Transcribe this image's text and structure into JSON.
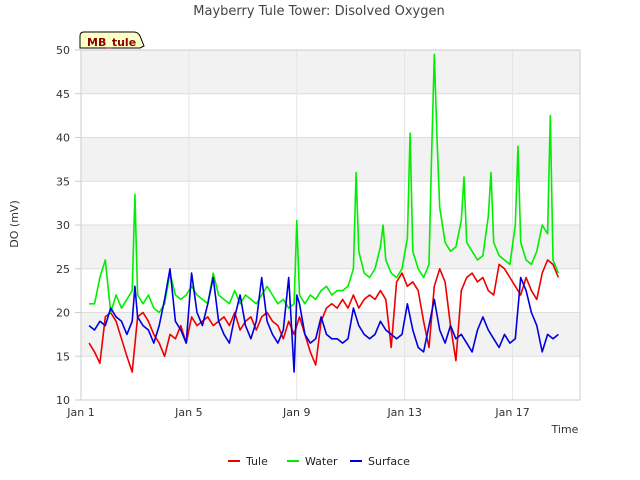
{
  "chart_data": {
    "type": "line",
    "title": "Mayberry Tule Tower: Disolved Oxygen",
    "xlabel": "Time",
    "ylabel": "DO (mV)",
    "ylim": [
      10,
      50
    ],
    "xlim": [
      1,
      19.5
    ],
    "yticks": [
      10,
      15,
      20,
      25,
      30,
      35,
      40,
      45,
      50
    ],
    "xticks": [
      {
        "value": 1,
        "label": "Jan 1"
      },
      {
        "value": 5,
        "label": "Jan 5"
      },
      {
        "value": 9,
        "label": "Jan 9"
      },
      {
        "value": 13,
        "label": "Jan 13"
      },
      {
        "value": 17,
        "label": "Jan 17"
      }
    ],
    "x_unit": "day of January",
    "grid": true,
    "banding": "alternating light-gray horizontal bands",
    "legend_placement": "bottom",
    "badge": "MB_tule",
    "series": [
      {
        "name": "Tule",
        "color": "#ee0000",
        "points": [
          [
            1.3,
            16.5
          ],
          [
            1.5,
            15.5
          ],
          [
            1.7,
            14.2
          ],
          [
            1.9,
            19.5
          ],
          [
            2.1,
            20.0
          ],
          [
            2.3,
            19.0
          ],
          [
            2.5,
            17.0
          ],
          [
            2.7,
            15.0
          ],
          [
            2.9,
            13.2
          ],
          [
            3.1,
            19.5
          ],
          [
            3.3,
            20.0
          ],
          [
            3.5,
            19.0
          ],
          [
            3.7,
            17.5
          ],
          [
            3.9,
            16.5
          ],
          [
            4.1,
            15.0
          ],
          [
            4.3,
            17.5
          ],
          [
            4.5,
            17.0
          ],
          [
            4.7,
            18.5
          ],
          [
            4.9,
            16.5
          ],
          [
            5.1,
            19.5
          ],
          [
            5.3,
            18.5
          ],
          [
            5.5,
            19.0
          ],
          [
            5.7,
            19.5
          ],
          [
            5.9,
            18.5
          ],
          [
            6.1,
            19.0
          ],
          [
            6.3,
            19.5
          ],
          [
            6.5,
            18.5
          ],
          [
            6.7,
            20.0
          ],
          [
            6.9,
            18.0
          ],
          [
            7.1,
            19.0
          ],
          [
            7.3,
            19.5
          ],
          [
            7.5,
            18.0
          ],
          [
            7.7,
            19.5
          ],
          [
            7.9,
            20.0
          ],
          [
            8.1,
            19.0
          ],
          [
            8.3,
            18.5
          ],
          [
            8.5,
            17.0
          ],
          [
            8.7,
            19.0
          ],
          [
            8.9,
            17.5
          ],
          [
            9.1,
            19.5
          ],
          [
            9.3,
            17.5
          ],
          [
            9.5,
            15.5
          ],
          [
            9.7,
            14.0
          ],
          [
            9.9,
            19.0
          ],
          [
            10.1,
            20.5
          ],
          [
            10.3,
            21.0
          ],
          [
            10.5,
            20.5
          ],
          [
            10.7,
            21.5
          ],
          [
            10.9,
            20.5
          ],
          [
            11.1,
            22.0
          ],
          [
            11.3,
            20.5
          ],
          [
            11.5,
            21.5
          ],
          [
            11.7,
            22.0
          ],
          [
            11.9,
            21.5
          ],
          [
            12.1,
            22.5
          ],
          [
            12.3,
            21.5
          ],
          [
            12.5,
            16.0
          ],
          [
            12.7,
            23.5
          ],
          [
            12.9,
            24.5
          ],
          [
            13.1,
            23.0
          ],
          [
            13.3,
            23.5
          ],
          [
            13.5,
            22.5
          ],
          [
            13.7,
            19.0
          ],
          [
            13.9,
            16.0
          ],
          [
            14.1,
            23.0
          ],
          [
            14.3,
            25.0
          ],
          [
            14.5,
            23.5
          ],
          [
            14.7,
            18.5
          ],
          [
            14.9,
            14.5
          ],
          [
            15.1,
            22.5
          ],
          [
            15.3,
            24.0
          ],
          [
            15.5,
            24.5
          ],
          [
            15.7,
            23.5
          ],
          [
            15.9,
            24.0
          ],
          [
            16.1,
            22.5
          ],
          [
            16.3,
            22.0
          ],
          [
            16.5,
            25.5
          ],
          [
            16.7,
            25.0
          ],
          [
            16.9,
            24.0
          ],
          [
            17.1,
            23.0
          ],
          [
            17.3,
            22.0
          ],
          [
            17.5,
            24.0
          ],
          [
            17.7,
            22.5
          ],
          [
            17.9,
            21.5
          ],
          [
            18.1,
            24.5
          ],
          [
            18.3,
            26.0
          ],
          [
            18.5,
            25.5
          ],
          [
            18.7,
            24.0
          ]
        ]
      },
      {
        "name": "Water",
        "color": "#00ee00",
        "points": [
          [
            1.3,
            21.0
          ],
          [
            1.5,
            21.0
          ],
          [
            1.7,
            24.0
          ],
          [
            1.9,
            26.0
          ],
          [
            2.1,
            20.0
          ],
          [
            2.3,
            22.0
          ],
          [
            2.5,
            20.5
          ],
          [
            2.7,
            21.5
          ],
          [
            2.9,
            22.5
          ],
          [
            3.0,
            33.5
          ],
          [
            3.1,
            22.0
          ],
          [
            3.3,
            21.0
          ],
          [
            3.5,
            22.0
          ],
          [
            3.7,
            20.5
          ],
          [
            3.9,
            20.0
          ],
          [
            4.1,
            21.0
          ],
          [
            4.3,
            24.5
          ],
          [
            4.5,
            22.0
          ],
          [
            4.7,
            21.5
          ],
          [
            4.9,
            22.0
          ],
          [
            5.1,
            23.0
          ],
          [
            5.3,
            22.0
          ],
          [
            5.5,
            21.5
          ],
          [
            5.7,
            21.0
          ],
          [
            5.9,
            24.5
          ],
          [
            6.1,
            22.0
          ],
          [
            6.3,
            21.5
          ],
          [
            6.5,
            21.0
          ],
          [
            6.7,
            22.5
          ],
          [
            6.9,
            21.0
          ],
          [
            7.1,
            22.0
          ],
          [
            7.3,
            21.5
          ],
          [
            7.5,
            21.0
          ],
          [
            7.7,
            22.0
          ],
          [
            7.9,
            23.0
          ],
          [
            8.1,
            22.0
          ],
          [
            8.3,
            21.0
          ],
          [
            8.5,
            21.5
          ],
          [
            8.7,
            20.5
          ],
          [
            8.9,
            21.0
          ],
          [
            9.0,
            30.5
          ],
          [
            9.1,
            22.0
          ],
          [
            9.3,
            21.0
          ],
          [
            9.5,
            22.0
          ],
          [
            9.7,
            21.5
          ],
          [
            9.9,
            22.5
          ],
          [
            10.1,
            23.0
          ],
          [
            10.3,
            22.0
          ],
          [
            10.5,
            22.5
          ],
          [
            10.7,
            22.5
          ],
          [
            10.9,
            23.0
          ],
          [
            11.1,
            25.0
          ],
          [
            11.2,
            36.0
          ],
          [
            11.3,
            27.0
          ],
          [
            11.5,
            24.5
          ],
          [
            11.7,
            24.0
          ],
          [
            11.9,
            25.0
          ],
          [
            12.1,
            27.5
          ],
          [
            12.2,
            30.0
          ],
          [
            12.3,
            26.0
          ],
          [
            12.5,
            24.5
          ],
          [
            12.7,
            24.0
          ],
          [
            12.9,
            25.0
          ],
          [
            13.1,
            28.5
          ],
          [
            13.2,
            40.5
          ],
          [
            13.3,
            27.0
          ],
          [
            13.5,
            25.0
          ],
          [
            13.7,
            24.0
          ],
          [
            13.9,
            25.5
          ],
          [
            14.0,
            38.0
          ],
          [
            14.1,
            49.5
          ],
          [
            14.2,
            40.0
          ],
          [
            14.3,
            32.0
          ],
          [
            14.5,
            28.0
          ],
          [
            14.7,
            27.0
          ],
          [
            14.9,
            27.5
          ],
          [
            15.1,
            30.5
          ],
          [
            15.2,
            35.5
          ],
          [
            15.3,
            28.0
          ],
          [
            15.5,
            27.0
          ],
          [
            15.7,
            26.0
          ],
          [
            15.9,
            26.5
          ],
          [
            16.1,
            31.0
          ],
          [
            16.2,
            36.0
          ],
          [
            16.3,
            28.0
          ],
          [
            16.5,
            26.5
          ],
          [
            16.7,
            26.0
          ],
          [
            16.9,
            25.5
          ],
          [
            17.1,
            30.0
          ],
          [
            17.2,
            39.0
          ],
          [
            17.3,
            28.0
          ],
          [
            17.5,
            26.0
          ],
          [
            17.7,
            25.5
          ],
          [
            17.9,
            27.0
          ],
          [
            18.1,
            30.0
          ],
          [
            18.3,
            29.0
          ],
          [
            18.4,
            42.5
          ],
          [
            18.5,
            26.0
          ],
          [
            18.7,
            24.5
          ]
        ]
      },
      {
        "name": "Surface",
        "color": "#0000dd",
        "points": [
          [
            1.3,
            18.5
          ],
          [
            1.5,
            18.0
          ],
          [
            1.7,
            19.0
          ],
          [
            1.9,
            18.5
          ],
          [
            2.1,
            20.5
          ],
          [
            2.3,
            19.5
          ],
          [
            2.5,
            19.0
          ],
          [
            2.7,
            17.5
          ],
          [
            2.9,
            19.0
          ],
          [
            3.0,
            23.0
          ],
          [
            3.1,
            19.5
          ],
          [
            3.3,
            18.5
          ],
          [
            3.5,
            18.0
          ],
          [
            3.7,
            16.5
          ],
          [
            3.9,
            18.5
          ],
          [
            4.1,
            21.5
          ],
          [
            4.3,
            25.0
          ],
          [
            4.5,
            19.0
          ],
          [
            4.7,
            18.0
          ],
          [
            4.9,
            16.5
          ],
          [
            5.1,
            24.5
          ],
          [
            5.3,
            20.0
          ],
          [
            5.5,
            18.5
          ],
          [
            5.7,
            21.0
          ],
          [
            5.9,
            24.0
          ],
          [
            6.1,
            19.0
          ],
          [
            6.3,
            17.5
          ],
          [
            6.5,
            16.5
          ],
          [
            6.7,
            19.5
          ],
          [
            6.9,
            22.0
          ],
          [
            7.1,
            18.5
          ],
          [
            7.3,
            17.0
          ],
          [
            7.5,
            19.0
          ],
          [
            7.7,
            24.0
          ],
          [
            7.9,
            19.0
          ],
          [
            8.1,
            17.5
          ],
          [
            8.3,
            16.5
          ],
          [
            8.5,
            18.0
          ],
          [
            8.7,
            24.0
          ],
          [
            8.9,
            13.2
          ],
          [
            9.0,
            22.0
          ],
          [
            9.1,
            21.0
          ],
          [
            9.3,
            17.5
          ],
          [
            9.5,
            16.5
          ],
          [
            9.7,
            17.0
          ],
          [
            9.9,
            19.5
          ],
          [
            10.1,
            17.5
          ],
          [
            10.3,
            17.0
          ],
          [
            10.5,
            17.0
          ],
          [
            10.7,
            16.5
          ],
          [
            10.9,
            17.0
          ],
          [
            11.1,
            20.5
          ],
          [
            11.3,
            18.5
          ],
          [
            11.5,
            17.5
          ],
          [
            11.7,
            17.0
          ],
          [
            11.9,
            17.5
          ],
          [
            12.1,
            19.0
          ],
          [
            12.3,
            18.0
          ],
          [
            12.5,
            17.5
          ],
          [
            12.7,
            17.0
          ],
          [
            12.9,
            17.5
          ],
          [
            13.1,
            21.0
          ],
          [
            13.3,
            18.0
          ],
          [
            13.5,
            16.0
          ],
          [
            13.7,
            15.5
          ],
          [
            13.9,
            18.5
          ],
          [
            14.1,
            21.5
          ],
          [
            14.3,
            18.0
          ],
          [
            14.5,
            16.5
          ],
          [
            14.7,
            18.5
          ],
          [
            14.9,
            17.0
          ],
          [
            15.1,
            17.5
          ],
          [
            15.3,
            16.5
          ],
          [
            15.5,
            15.5
          ],
          [
            15.7,
            18.0
          ],
          [
            15.9,
            19.5
          ],
          [
            16.1,
            18.0
          ],
          [
            16.3,
            17.0
          ],
          [
            16.5,
            16.0
          ],
          [
            16.7,
            17.5
          ],
          [
            16.9,
            16.5
          ],
          [
            17.1,
            17.0
          ],
          [
            17.3,
            24.0
          ],
          [
            17.5,
            22.5
          ],
          [
            17.7,
            20.0
          ],
          [
            17.9,
            18.5
          ],
          [
            18.1,
            15.5
          ],
          [
            18.3,
            17.5
          ],
          [
            18.5,
            17.0
          ],
          [
            18.7,
            17.5
          ]
        ]
      }
    ]
  }
}
